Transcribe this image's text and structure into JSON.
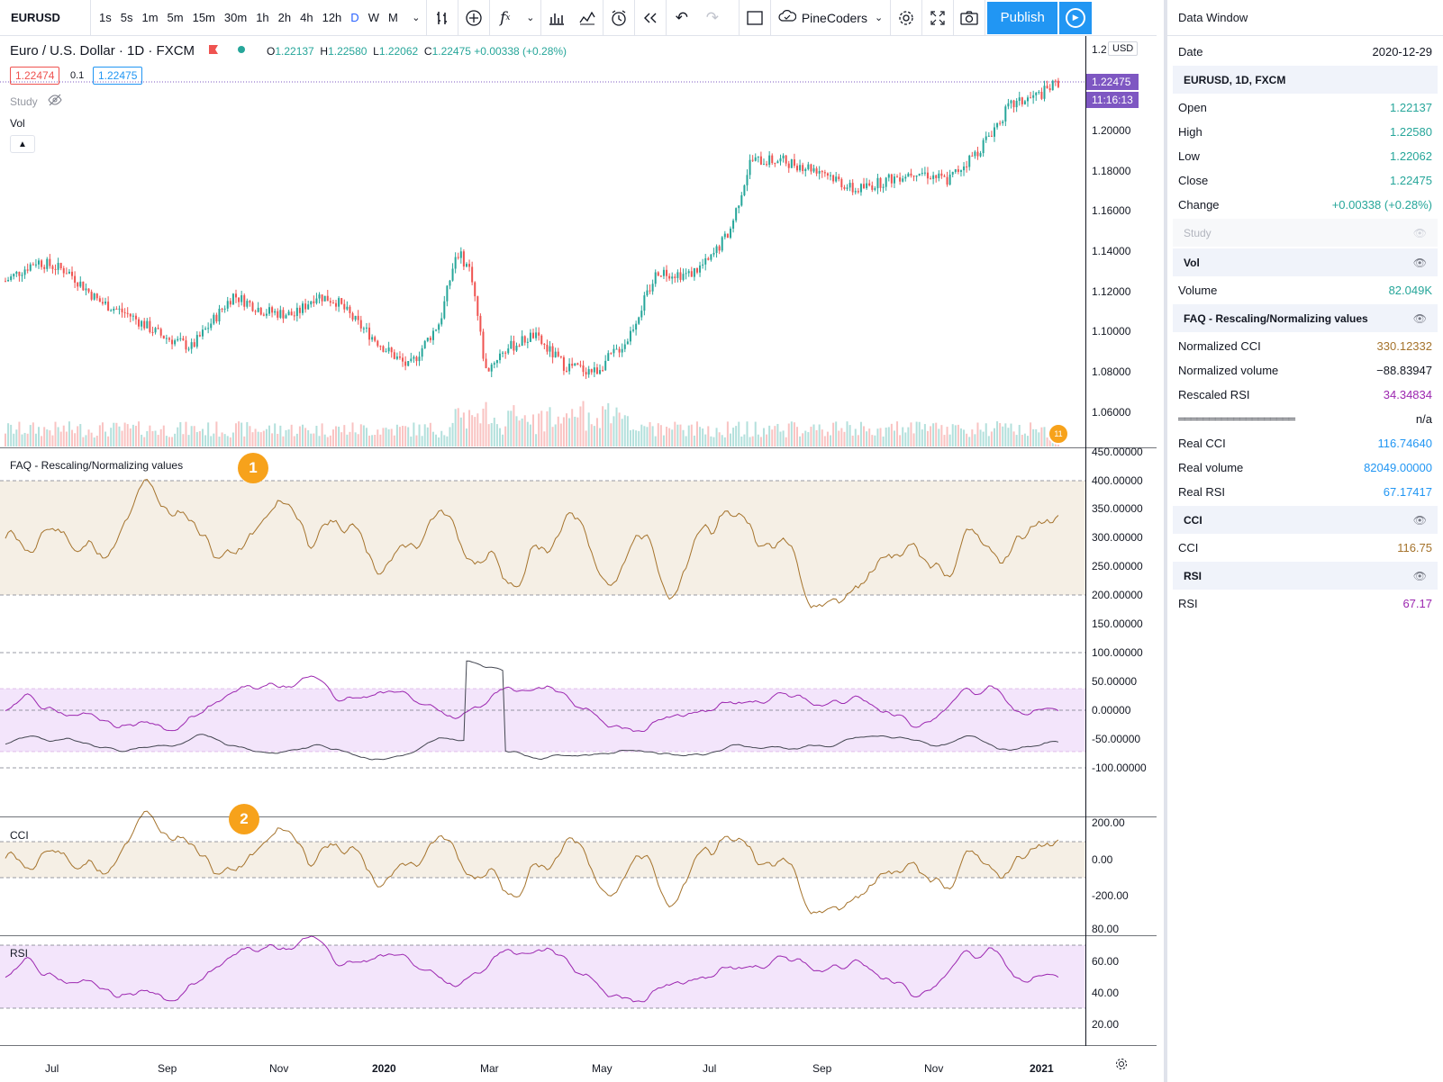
{
  "toolbar": {
    "symbol": "EURUSD",
    "intervals": [
      "1s",
      "5s",
      "1m",
      "5m",
      "15m",
      "30m",
      "1h",
      "2h",
      "4h",
      "12h",
      "D",
      "W",
      "M"
    ],
    "active_interval": "D",
    "account": "PineCoders",
    "publish_label": "Publish"
  },
  "legend": {
    "title": "Euro / U.S. Dollar · 1D · FXCM",
    "open": "1.22137",
    "high": "1.22580",
    "low": "1.22062",
    "close": "1.22475",
    "change": "+0.00338 (+0.28%)",
    "bid": "1.22474",
    "spread": "0.1",
    "ask": "1.22475",
    "study_label": "Study",
    "vol_label": "Vol"
  },
  "tags": {
    "currency": "USD",
    "last_price": "1.22475",
    "countdown": "11:16:13"
  },
  "panes": {
    "faq_title": "FAQ - Rescaling/Normalizing values",
    "cci_title": "CCI",
    "rsi_title": "RSI",
    "badge1": "1",
    "badge2": "2"
  },
  "axes": {
    "price": [
      "1.22000",
      "1.20000",
      "1.18000",
      "1.16000",
      "1.14000",
      "1.12000",
      "1.10000",
      "1.08000",
      "1.06000"
    ],
    "price_top": "1.2",
    "faq": [
      "450.00000",
      "400.00000",
      "350.00000",
      "300.00000",
      "250.00000",
      "200.00000",
      "150.00000",
      "100.00000",
      "50.00000",
      "0.00000",
      "-50.00000",
      "-100.00000"
    ],
    "cci": [
      "200.00",
      "0.00",
      "-200.00"
    ],
    "rsi": [
      "80.00",
      "60.00",
      "40.00",
      "20.00"
    ],
    "time": [
      "Jul",
      "Sep",
      "Nov",
      "2020",
      "Mar",
      "May",
      "Jul",
      "Sep",
      "Nov",
      "2021"
    ],
    "badge_time": "11"
  },
  "colors": {
    "up": "#26a69a",
    "down": "#ef5350",
    "normalized_cci": "#a5732c",
    "rsi": "#9c27b0",
    "volume_norm": "#434651",
    "band_brown": "#f5efe5",
    "band_purple": "#f3e5fb",
    "accent": "#2196f3"
  },
  "data_window": {
    "title": "Data Window",
    "date_label": "Date",
    "date": "2020-12-29",
    "symbol_section": "EURUSD, 1D, FXCM",
    "ohlc": [
      {
        "label": "Open",
        "value": "1.22137"
      },
      {
        "label": "High",
        "value": "1.22580"
      },
      {
        "label": "Low",
        "value": "1.22062"
      },
      {
        "label": "Close",
        "value": "1.22475"
      },
      {
        "label": "Change",
        "value": "+0.00338 (+0.28%)"
      }
    ],
    "study_section": "Study",
    "vol_section": "Vol",
    "volume_label": "Volume",
    "volume_value": "82.049K",
    "faq_section": "FAQ - Rescaling/Normalizing values",
    "faq_rows": [
      {
        "label": "Normalized CCI",
        "value": "330.12332",
        "color": "brown"
      },
      {
        "label": "Normalized volume",
        "value": "−88.83947",
        "color": "black"
      },
      {
        "label": "Rescaled RSI",
        "value": "34.34834",
        "color": "purple"
      },
      {
        "label": "═══════════════════",
        "value": "n/a",
        "color": "black"
      },
      {
        "label": "Real CCI",
        "value": "116.74640",
        "color": "blue"
      },
      {
        "label": "Real volume",
        "value": "82049.00000",
        "color": "blue"
      },
      {
        "label": "Real RSI",
        "value": "67.17417",
        "color": "blue"
      }
    ],
    "cci_section": "CCI",
    "cci_label": "CCI",
    "cci_value": "116.75",
    "rsi_section": "RSI",
    "rsi_label": "RSI",
    "rsi_value": "67.17"
  }
}
